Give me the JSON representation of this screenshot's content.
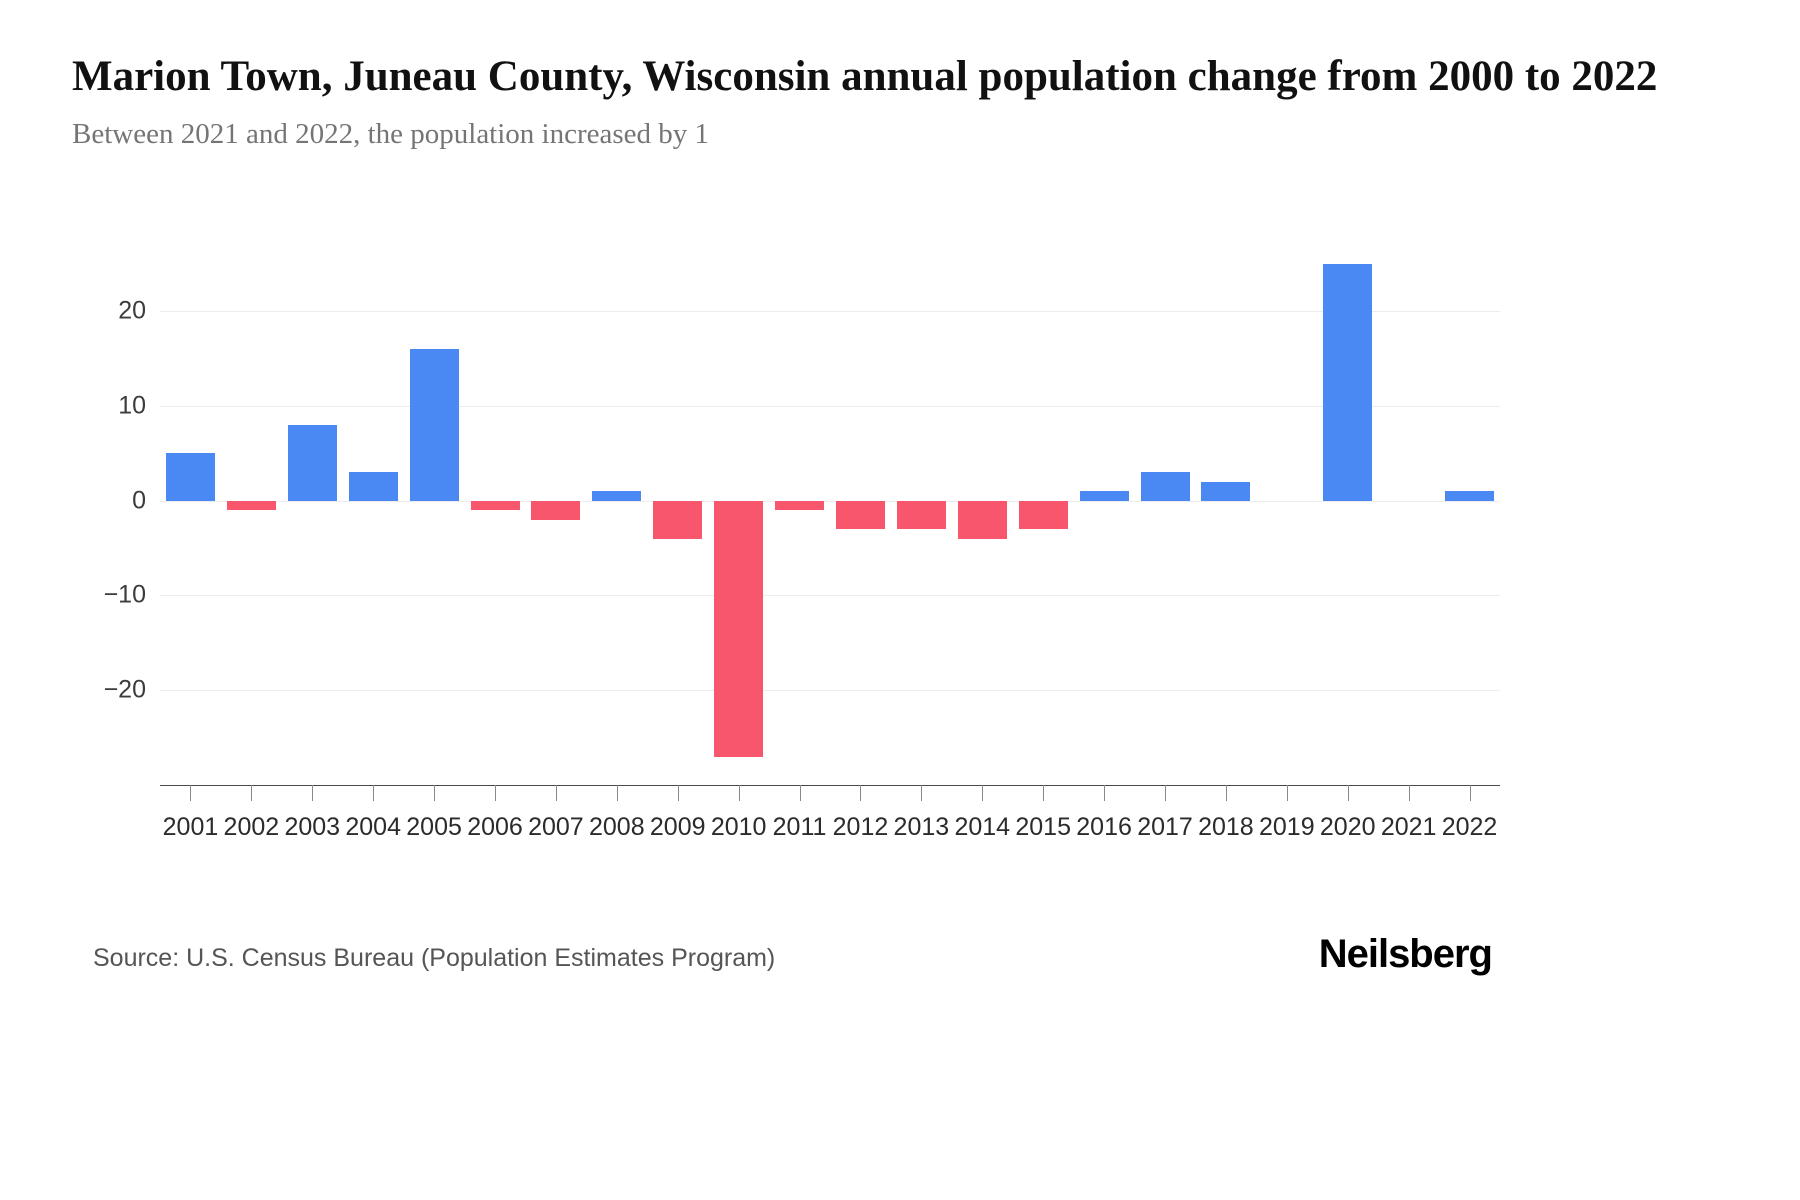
{
  "header": {
    "title": "Marion Town, Juneau County, Wisconsin annual population change from 2000 to 2022",
    "subtitle": "Between 2021 and 2022, the population increased by 1"
  },
  "chart_data": {
    "type": "bar",
    "title": "Marion Town, Juneau County, Wisconsin annual population change from 2000 to 2022",
    "subtitle": "Between 2021 and 2022, the population increased by 1",
    "categories": [
      "2001",
      "2002",
      "2003",
      "2004",
      "2005",
      "2006",
      "2007",
      "2008",
      "2009",
      "2010",
      "2011",
      "2012",
      "2013",
      "2014",
      "2015",
      "2016",
      "2017",
      "2018",
      "2019",
      "2020",
      "2021",
      "2022"
    ],
    "values": [
      5,
      -1,
      8,
      3,
      16,
      -1,
      -2,
      1,
      -4,
      -27,
      -1,
      -3,
      -3,
      -4,
      -3,
      1,
      3,
      2,
      0,
      25,
      0,
      1
    ],
    "xlabel": "",
    "ylabel": "",
    "ylim": [
      -30,
      27.5
    ],
    "yticks": [
      20,
      10,
      0,
      -10,
      -20
    ],
    "ytick_labels": [
      "20",
      "10",
      "0",
      "−10",
      "−20"
    ],
    "grid": true,
    "legend": false,
    "positive_color": "#4a89f3",
    "negative_color": "#f8566d"
  },
  "footer": {
    "source": "Source: U.S. Census Bureau (Population Estimates Program)",
    "brand": "Neilsberg"
  }
}
